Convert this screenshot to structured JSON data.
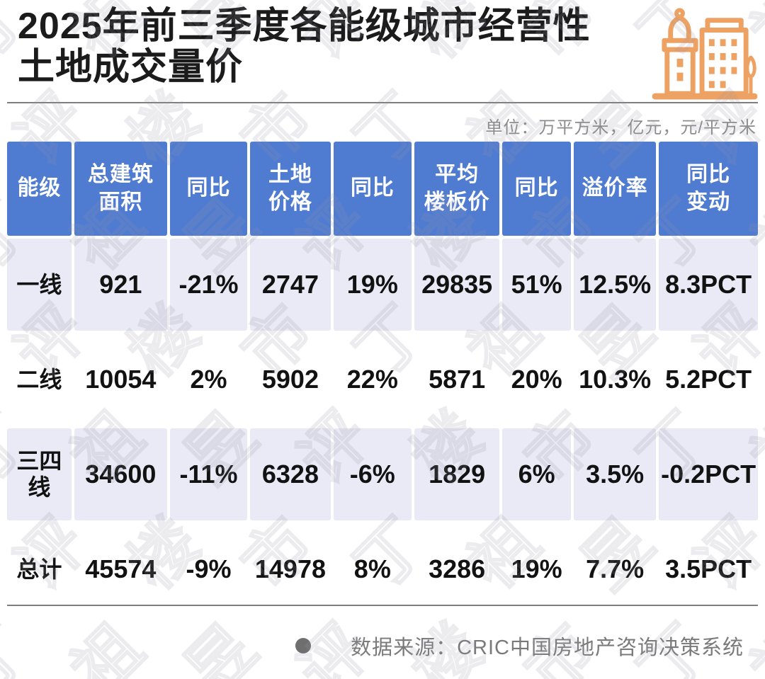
{
  "title": "2025年前三季度各能级城市经营性土地成交量价",
  "units_note": "单位：万平方米，亿元，元/平方米",
  "table": {
    "headers": [
      {
        "lines": [
          "能级"
        ]
      },
      {
        "lines": [
          "总建筑",
          "面积"
        ]
      },
      {
        "lines": [
          "同比"
        ]
      },
      {
        "lines": [
          "土地",
          "价格"
        ]
      },
      {
        "lines": [
          "同比"
        ]
      },
      {
        "lines": [
          "平均",
          "楼板价"
        ]
      },
      {
        "lines": [
          "同比"
        ]
      },
      {
        "lines": [
          "溢价率"
        ]
      },
      {
        "lines": [
          "同比",
          "变动"
        ]
      }
    ],
    "rows": [
      {
        "label": "一线",
        "values": [
          "921",
          "-21%",
          "2747",
          "19%",
          "29835",
          "51%",
          "12.5%",
          "8.3PCT"
        ]
      },
      {
        "label": "二线",
        "values": [
          "10054",
          "2%",
          "5902",
          "22%",
          "5871",
          "20%",
          "10.3%",
          "5.2PCT"
        ]
      },
      {
        "label": "三四线",
        "values": [
          "34600",
          "-11%",
          "6328",
          "-6%",
          "1829",
          "6%",
          "3.5%",
          "-0.2PCT"
        ]
      },
      {
        "label": "总计",
        "values": [
          "45574",
          "-9%",
          "14978",
          "8%",
          "3286",
          "19%",
          "7.7%",
          "3.5PCT"
        ]
      }
    ]
  },
  "footer": {
    "source": "数据来源：CRIC中国房地产咨询决策系统"
  },
  "watermark": {
    "text": "丁祖昱评楼市"
  },
  "colors": {
    "header_blue": "#4f7cd1",
    "row_lavender": "#e9eaf6",
    "accent_orange": "#eda263",
    "muted_gray": "#8c8c8c",
    "text_black": "#121212"
  }
}
